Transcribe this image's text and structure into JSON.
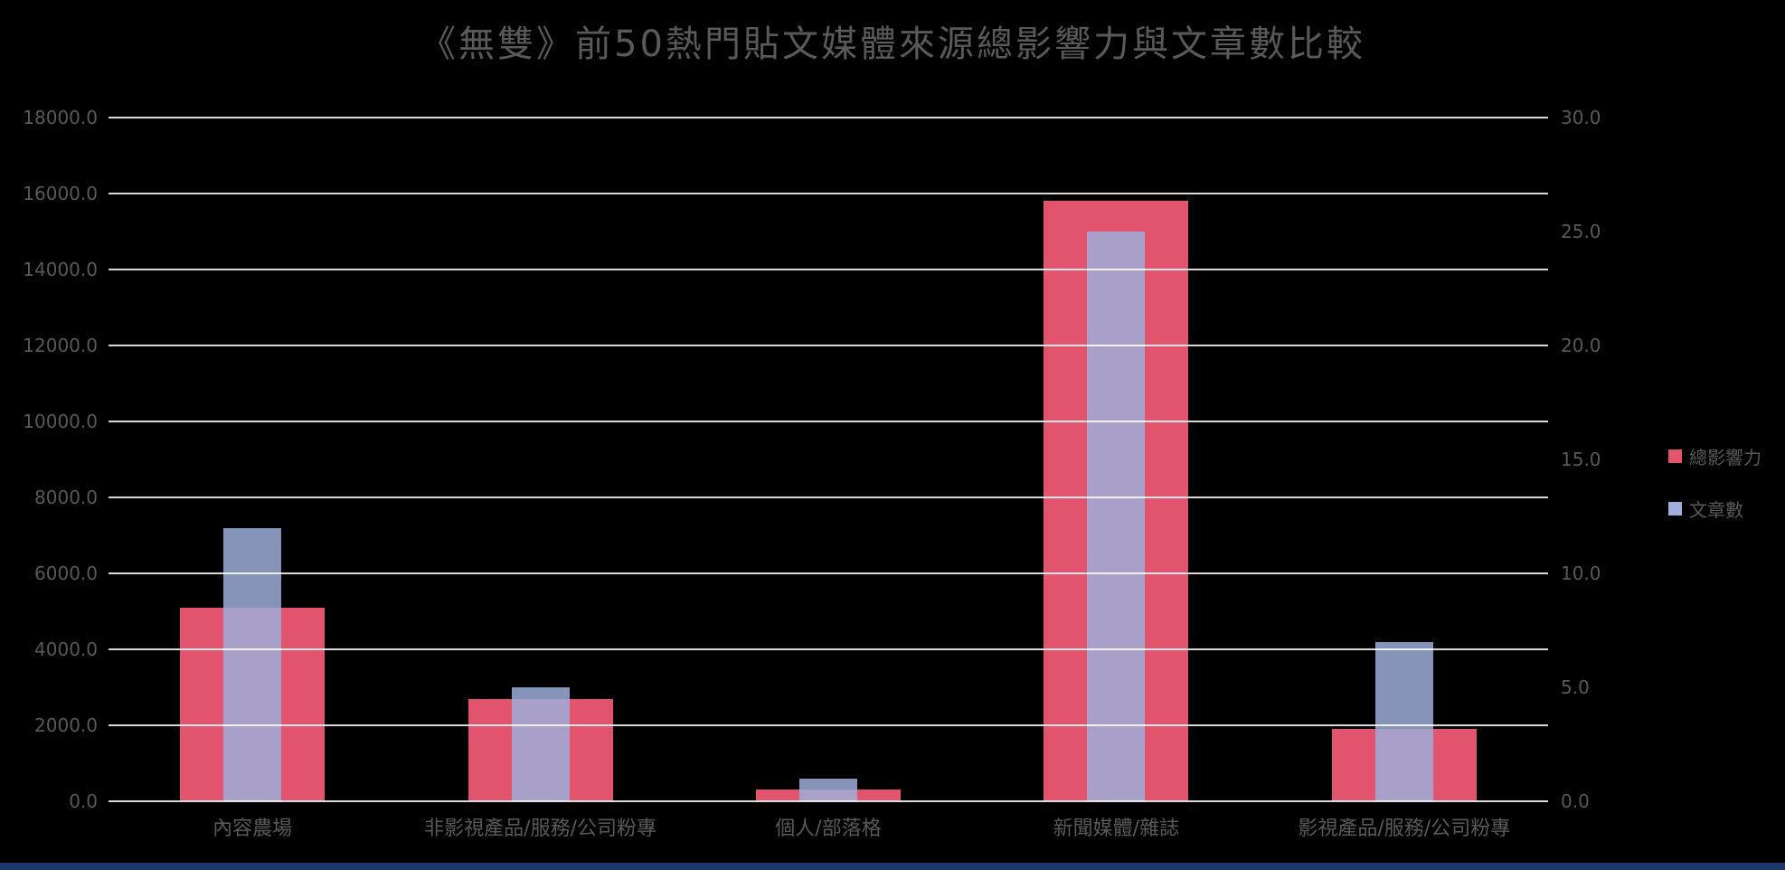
{
  "title": "《無雙》前50熱門貼文媒體來源總影響力與文章數比較",
  "colors": {
    "background": "#000000",
    "title_text": "#595959",
    "axis_text": "#595959",
    "gridline": "#FFFFFF",
    "influence": "#E2536E",
    "articles": "#9FAEDB",
    "bottom_strip": "#1C3866"
  },
  "chart_data": {
    "type": "bar",
    "title": "《無雙》前50熱門貼文媒體來源總影響力與文章數比較",
    "categories": [
      "內容農場",
      "非影視產品/服務/公司粉專",
      "個人/部落格",
      "新聞媒體/雜誌",
      "影視產品/服務/公司粉專"
    ],
    "series": [
      {
        "name": "總影響力",
        "axis": "left",
        "color": "#E2536E",
        "values": [
          5100,
          2700,
          300,
          15800,
          1900
        ]
      },
      {
        "name": "文章數",
        "axis": "right",
        "color": "#9FAEDB",
        "values": [
          12,
          5,
          1,
          25,
          7
        ]
      }
    ],
    "left_axis": {
      "min": 0,
      "max": 18000,
      "tick_values": [
        0,
        2000,
        4000,
        6000,
        8000,
        10000,
        12000,
        14000,
        16000,
        18000
      ],
      "tick_labels": [
        "0.0",
        "2000.0",
        "4000.0",
        "6000.0",
        "8000.0",
        "10000.0",
        "12000.0",
        "14000.0",
        "16000.0",
        "18000.0"
      ]
    },
    "right_axis": {
      "min": 0,
      "max": 30,
      "tick_values": [
        0,
        5,
        10,
        15,
        20,
        25,
        30
      ],
      "tick_labels": [
        "0.0",
        "5.0",
        "10.0",
        "15.0",
        "20.0",
        "25.0",
        "30.0"
      ]
    },
    "grid": true,
    "legend_position": "right"
  }
}
